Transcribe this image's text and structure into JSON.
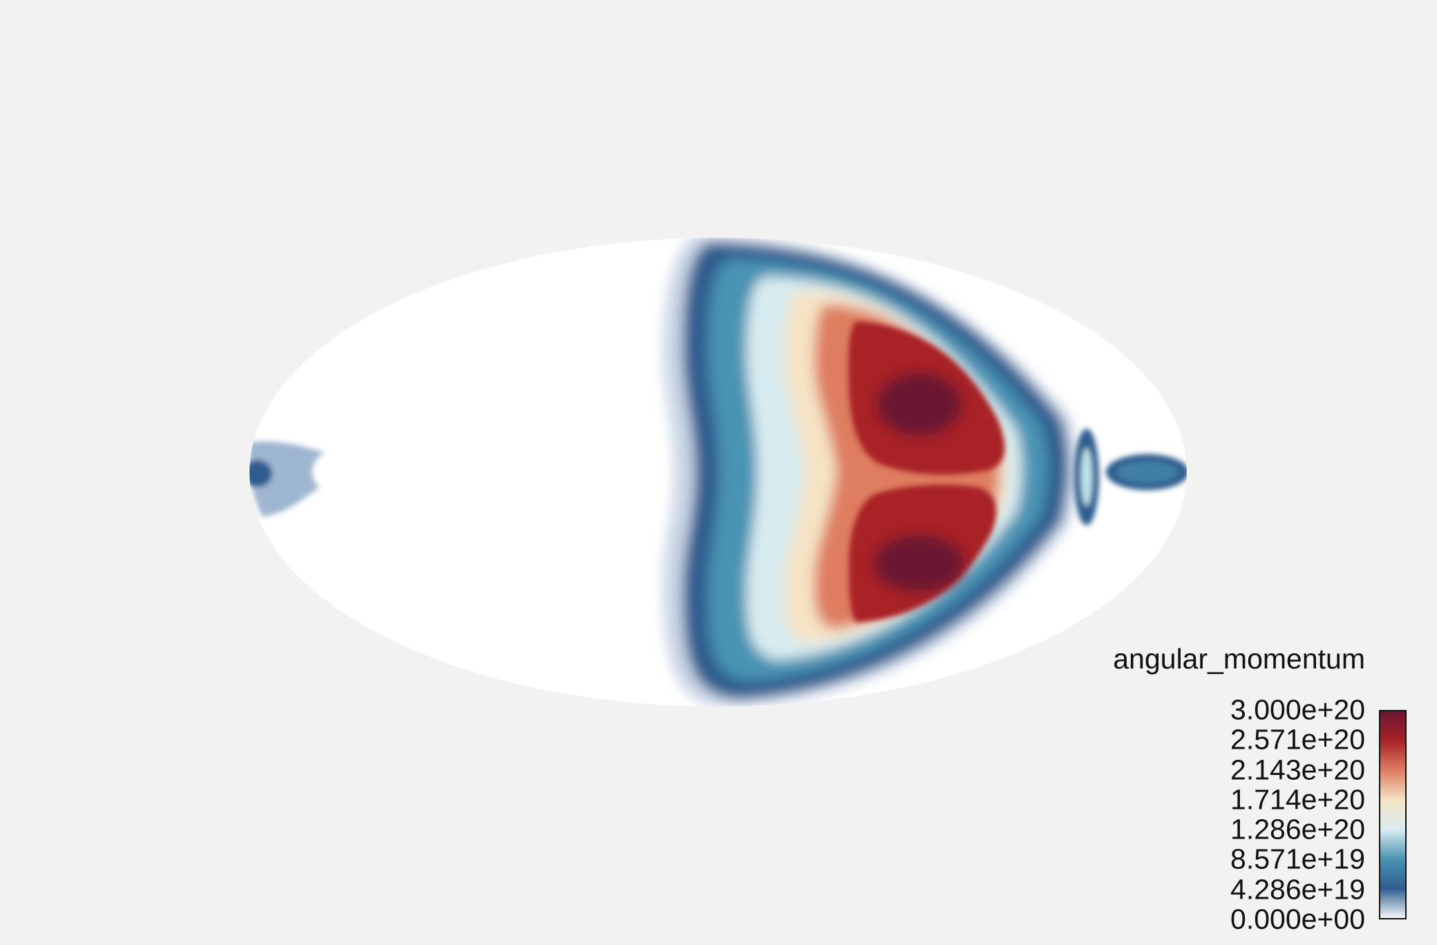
{
  "chart_data": {
    "type": "heatmap",
    "projection": "mollweide",
    "background_color": "#f2f2f2",
    "legend": {
      "title": "angular_momentum",
      "placement": "bottom-right",
      "ticks": [
        "3.000e+20",
        "2.571e+20",
        "2.143e+20",
        "1.714e+20",
        "1.286e+20",
        "8.571e+19",
        "4.286e+19",
        "0.000e+00"
      ],
      "range": [
        0,
        3e+20
      ]
    },
    "colormap": {
      "name": "RdBu_r-like",
      "stops": [
        "#f5f7fa",
        "#2f5d8f",
        "#4a93b3",
        "#d8ecf0",
        "#f6e3c5",
        "#de7d61",
        "#a82228",
        "#6b1630"
      ]
    },
    "regions": [
      {
        "id": "main-lobe-upper",
        "peak_value": 3e+20
      },
      {
        "id": "main-lobe-lower",
        "peak_value": 3e+20
      },
      {
        "id": "right-edge-blob",
        "peak_value": 6e+19
      },
      {
        "id": "left-edge-blob",
        "peak_value": 4e+19
      }
    ]
  }
}
